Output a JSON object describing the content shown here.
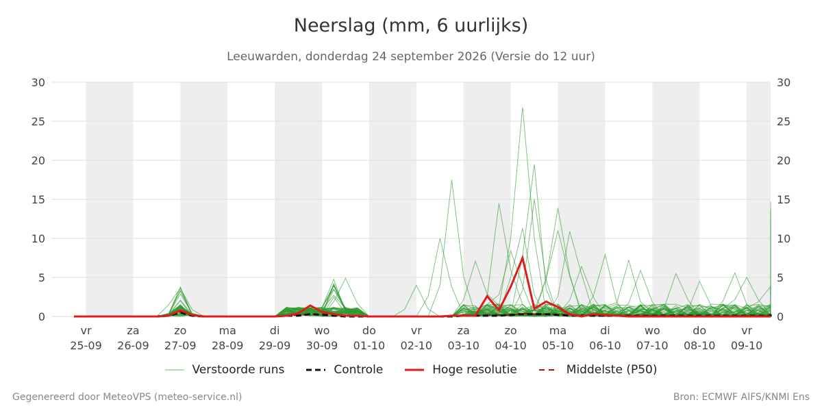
{
  "chart_data": {
    "type": "line",
    "title": "Neerslag (mm, 6 uurlijks)",
    "subtitle": "Leeuwarden, donderdag 24 september 2026 (Versie do 12 uur)",
    "ylim": [
      0,
      30
    ],
    "yticks": [
      0,
      5,
      10,
      15,
      20,
      25,
      30
    ],
    "x_start": "2026-09-25",
    "x_end": "2026-10-10",
    "step_hours": 6,
    "grid": true,
    "weekend_shading": true,
    "day_labels": [
      {
        "day": "vr",
        "date": "25-09"
      },
      {
        "day": "za",
        "date": "26-09"
      },
      {
        "day": "zo",
        "date": "27-09"
      },
      {
        "day": "ma",
        "date": "28-09"
      },
      {
        "day": "di",
        "date": "29-09"
      },
      {
        "day": "wo",
        "date": "30-09"
      },
      {
        "day": "do",
        "date": "01-10"
      },
      {
        "day": "vr",
        "date": "02-10"
      },
      {
        "day": "za",
        "date": "03-10"
      },
      {
        "day": "zo",
        "date": "04-10"
      },
      {
        "day": "ma",
        "date": "05-10"
      },
      {
        "day": "di",
        "date": "06-10"
      },
      {
        "day": "wo",
        "date": "07-10"
      },
      {
        "day": "do",
        "date": "08-10"
      },
      {
        "day": "vr",
        "date": "09-10"
      }
    ],
    "series_hires": [
      0,
      0,
      0,
      0,
      0,
      0,
      0,
      0,
      0.1,
      0.8,
      0.2,
      0,
      0,
      0,
      0,
      0,
      0,
      0,
      0.1,
      0.4,
      1.4,
      0.6,
      0.3,
      0.1,
      0.1,
      0,
      0,
      0,
      0,
      0,
      0,
      0,
      0.1,
      0.1,
      0.1,
      2.6,
      0.8,
      3.8,
      7.5,
      1.0,
      1.9,
      1.2,
      0.3,
      0,
      0.3,
      0.2,
      0.1,
      0,
      0,
      0,
      0,
      0,
      0,
      0,
      0,
      0,
      0,
      0,
      0,
      0,
      0,
      0,
      0,
      0,
      0,
      0,
      0,
      0,
      0,
      0,
      0,
      0,
      0,
      0,
      0,
      0,
      0,
      0,
      0,
      0,
      0,
      0,
      0,
      0,
      0,
      0,
      0,
      0,
      0,
      0,
      0
    ],
    "series_control": [
      0,
      0,
      0,
      0,
      0,
      0,
      0,
      0,
      0.1,
      0.5,
      0.1,
      0,
      0,
      0,
      0,
      0,
      0,
      0,
      0.1,
      0.1,
      0.3,
      0.2,
      0.1,
      0,
      0,
      0,
      0,
      0,
      0,
      0,
      0,
      0,
      0,
      0.1,
      0.1,
      0.1,
      0.1,
      0.2,
      0.3,
      0.3,
      0.3,
      0.2,
      0.1,
      0.1,
      0.1,
      0.1,
      0.1,
      0.1,
      0.1,
      0.1,
      0.1,
      0.1,
      0.1,
      0.1,
      0.1,
      0.1,
      0.1,
      0.1,
      0.1,
      0.1,
      0.1,
      0.1,
      0.1,
      0.1,
      0.1,
      0.1,
      0.1,
      0.1,
      0.1,
      0.1,
      0.1,
      0.1,
      0.1,
      0.1,
      0.1,
      0.1,
      0.1,
      0.1,
      0.1,
      0.1,
      0.1,
      0.1,
      0.1,
      0.1,
      0.1,
      0.2,
      0.2,
      0.2,
      0.2,
      0.2,
      0.3
    ],
    "series_p50": [
      0,
      0,
      0,
      0,
      0,
      0,
      0,
      0,
      0.1,
      0.6,
      0.1,
      0,
      0,
      0,
      0,
      0,
      0,
      0,
      0.1,
      0.2,
      0.3,
      0.3,
      0.2,
      0.1,
      0.1,
      0,
      0,
      0,
      0,
      0,
      0,
      0,
      0.1,
      0.1,
      0.1,
      0.2,
      0.2,
      0.2,
      0.4,
      0.3,
      0.3,
      0.3,
      0.2,
      0.1,
      0.1,
      0.1,
      0.1,
      0.1,
      0.1,
      0.1,
      0.1,
      0.1,
      0.1,
      0.1,
      0.1,
      0.1,
      0.1,
      0.1,
      0.1,
      0.1,
      0.1,
      0.1,
      0.1,
      0.1,
      0.1,
      0.1,
      0.1,
      0.1,
      0.1,
      0.1,
      0.1,
      0.1,
      0.1,
      0.1,
      0.1,
      0.1,
      0.1,
      0.1,
      0.1,
      0.1,
      0.1,
      0.1,
      0.1,
      0.1,
      0.1,
      0.1,
      0.1,
      0.1,
      0.1,
      0.1,
      0.1
    ],
    "ensemble": {
      "member_count": 50,
      "peaks": [
        [
          38,
          26.8
        ],
        [
          39,
          19.5
        ],
        [
          32,
          17.5
        ],
        [
          36,
          14.5
        ],
        [
          39,
          15.0
        ],
        [
          41,
          13.9
        ],
        [
          42,
          10.9
        ],
        [
          41,
          11.0
        ],
        [
          34,
          7.1
        ],
        [
          64,
          14.7
        ],
        [
          65,
          11.9
        ],
        [
          62,
          11.5
        ],
        [
          61,
          10.3
        ],
        [
          66,
          10.2
        ],
        [
          69,
          11.1
        ],
        [
          74,
          11.3
        ],
        [
          78,
          13.7
        ],
        [
          80,
          12.0
        ],
        [
          81,
          12.9
        ],
        [
          83,
          9.7
        ],
        [
          88,
          8.4
        ],
        [
          85,
          6.2
        ],
        [
          45,
          7.9
        ],
        [
          47,
          7.2
        ],
        [
          48,
          5.9
        ],
        [
          51,
          5.5
        ],
        [
          56,
          5.6
        ],
        [
          59,
          3.8
        ],
        [
          31,
          10.0
        ],
        [
          23,
          4.9
        ],
        [
          29,
          4.0
        ],
        [
          71,
          6.9
        ],
        [
          72,
          7.1
        ],
        [
          75,
          6.8
        ],
        [
          77,
          4.1
        ],
        [
          9,
          3.8
        ],
        [
          38,
          11.3
        ],
        [
          37,
          8.4
        ],
        [
          43,
          6.4
        ],
        [
          53,
          4.5
        ],
        [
          57,
          5.0
        ],
        [
          63,
          7.4
        ],
        [
          68,
          7.0
        ],
        [
          73,
          4.2
        ],
        [
          79,
          7.6
        ],
        [
          82,
          5.0
        ],
        [
          84,
          3.3
        ],
        [
          86,
          4.5
        ],
        [
          87,
          2.0
        ],
        [
          89,
          5.4
        ]
      ]
    }
  },
  "legend": {
    "members": "Verstoorde runs",
    "control": "Controle",
    "hires": "Hoge resolutie",
    "p50": "Middelste (P50)"
  },
  "footer": {
    "left": "Gegenereerd door MeteoVPS (meteo-service.nl)",
    "right": "Bron: ECMWF AIFS/KNMI Ens"
  },
  "colors": {
    "members": "#2e9a2e",
    "control": "#111111",
    "hires": "#e01b1b",
    "p50": "#a01010",
    "shade": "#eeeeee",
    "grid": "#dddddd"
  }
}
